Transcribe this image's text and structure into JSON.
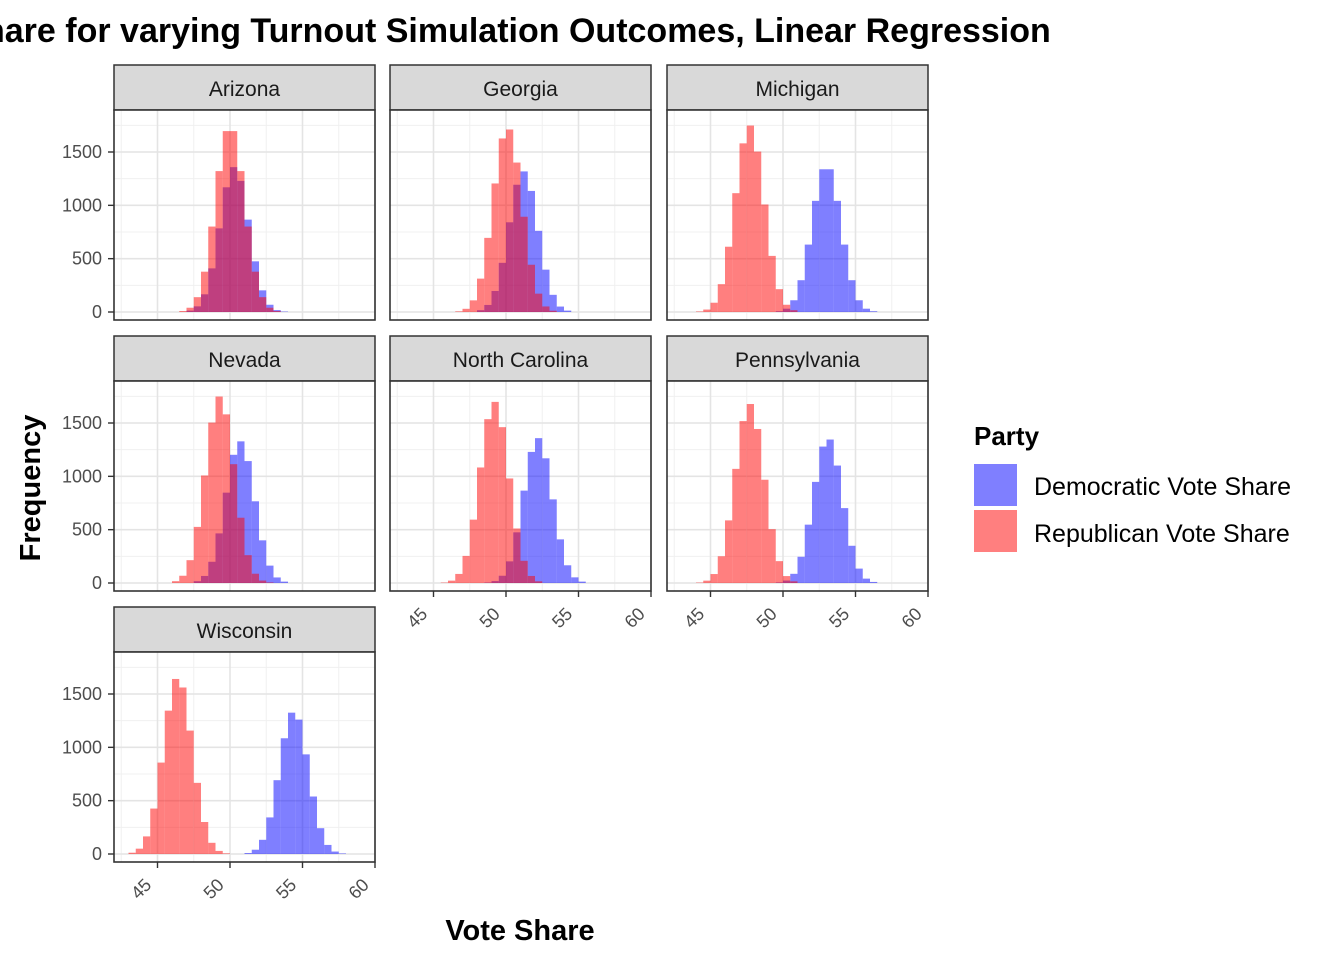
{
  "chart_data": {
    "type": "bar",
    "title": "hare for varying Turnout Simulation Outcomes, Linear Regression",
    "xlabel": "Vote Share",
    "ylabel": "Frequency",
    "xlim": [
      42,
      60
    ],
    "ylim": [
      0,
      1800
    ],
    "x_ticks": [
      45,
      50,
      55,
      60
    ],
    "y_ticks": [
      0,
      500,
      1000,
      1500
    ],
    "grid": true,
    "facets": [
      "Arizona",
      "Georgia",
      "Michigan",
      "Nevada",
      "North Carolina",
      "Pennsylvania",
      "Wisconsin"
    ],
    "legend": {
      "title": "Party",
      "position": "right",
      "entries": [
        {
          "name": "Democratic Vote Share",
          "color": "#0000ff"
        },
        {
          "name": "Republican Vote Share",
          "color": "#ff0000"
        }
      ]
    },
    "series": [
      {
        "name": "Democratic Vote Share",
        "color": "#0000ff",
        "opacity": 0.5,
        "peaks": {
          "Arizona": 50.3,
          "Georgia": 51.2,
          "Michigan": 53.0,
          "Nevada": 50.7,
          "North Carolina": 52.2,
          "Pennsylvania": 53.1,
          "Wisconsin": 54.4
        },
        "peak_count": {
          "Arizona": 1360,
          "Georgia": 1320,
          "Michigan": 1380,
          "Nevada": 1330,
          "North Carolina": 1360,
          "Pennsylvania": 1360,
          "Wisconsin": 1340
        }
      },
      {
        "name": "Republican Vote Share",
        "color": "#ff0000",
        "opacity": 0.5,
        "peaks": {
          "Arizona": 50.0,
          "Georgia": 50.1,
          "Michigan": 47.7,
          "Nevada": 49.3,
          "North Carolina": 49.2,
          "Pennsylvania": 47.7,
          "Wisconsin": 46.4
        },
        "peak_count": {
          "Arizona": 1750,
          "Georgia": 1730,
          "Michigan": 1750,
          "Nevada": 1750,
          "North Carolina": 1700,
          "Pennsylvania": 1680,
          "Wisconsin": 1660
        }
      }
    ],
    "bin_width": 0.5,
    "distribution_sd": 1.0
  }
}
